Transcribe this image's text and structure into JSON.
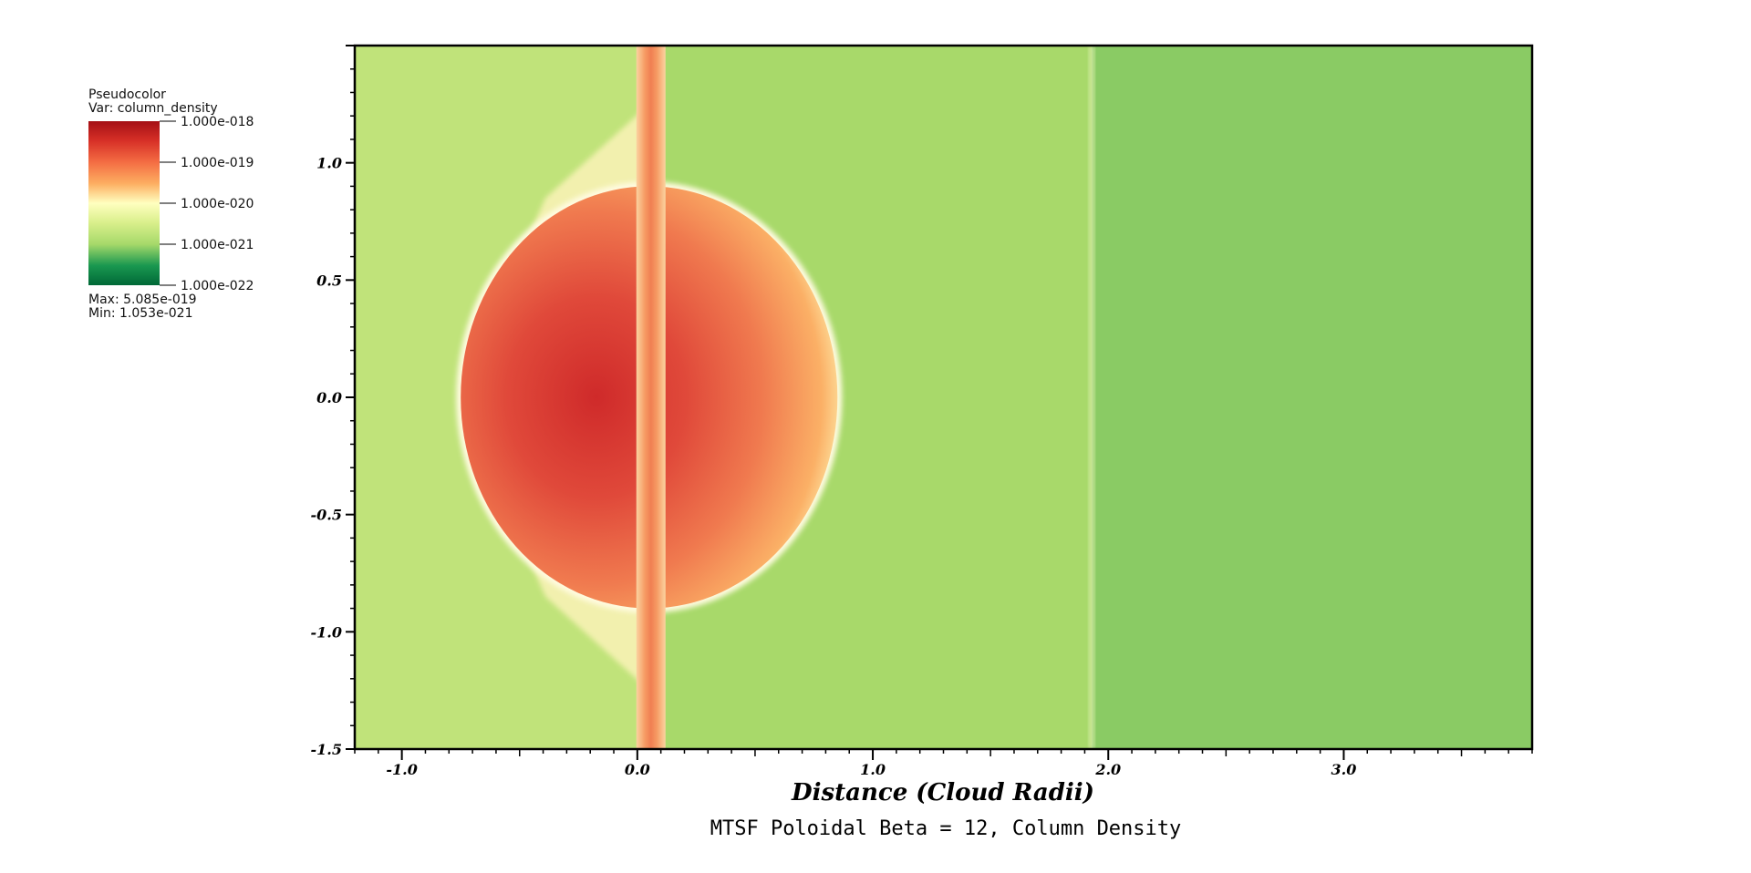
{
  "chart_data": {
    "type": "heatmap",
    "title": "MTSF Poloidal Beta = 12, Column Density",
    "xlabel": "Distance (Cloud Radii)",
    "ylabel": "",
    "xlim": [
      -1.2,
      3.8
    ],
    "ylim": [
      -1.5,
      1.5
    ],
    "x_ticks": [
      -1.0,
      0.0,
      1.0,
      2.0,
      3.0
    ],
    "x_tick_labels": [
      "-1.0",
      "0.0",
      "1.0",
      "2.0",
      "3.0"
    ],
    "y_ticks": [
      -1.5,
      -1.0,
      -0.5,
      0.0,
      0.5,
      1.0
    ],
    "y_tick_labels": [
      "-1.5",
      "-1.0",
      "-0.5",
      "0.0",
      "0.5",
      "1.0"
    ],
    "legend": {
      "type_label": "Pseudocolor",
      "var_label": "Var: column_density",
      "scale": "log",
      "levels": [
        1e-18,
        1e-19,
        1e-20,
        1e-21,
        1e-22
      ],
      "level_labels": [
        "1.000e-018",
        "1.000e-019",
        "1.000e-020",
        "1.000e-021",
        "1.000e-022"
      ],
      "max_label": "Max:  5.085e-019",
      "min_label": "Min:  1.053e-021",
      "placement": "top-left",
      "colors": [
        "#a50f15",
        "#d73027",
        "#f46d43",
        "#fdae61",
        "#ffffbf",
        "#d9ef8b",
        "#a6d96a",
        "#1a9850",
        "#006837"
      ]
    },
    "features": {
      "cloud_center": [
        0.05,
        0.0
      ],
      "cloud_radius_x": 0.8,
      "cloud_radius_y": 0.9,
      "jet_x": 0.05,
      "shock_front_x": 1.93,
      "background_left_color": "#c0e37a",
      "background_mid_color": "#a8d96a",
      "background_right_color": "#8acb64"
    }
  }
}
